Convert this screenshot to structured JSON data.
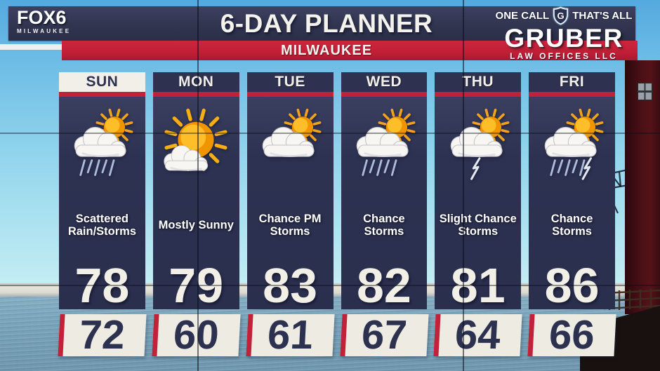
{
  "station": {
    "logo": "FOX6",
    "logo_sub": "MILWAUKEE"
  },
  "header": {
    "title": "6-DAY PLANNER",
    "location": "MILWAUKEE"
  },
  "sponsor": {
    "tag_left": "ONE CALL",
    "shield_letter": "G",
    "tag_right": "THAT'S ALL",
    "name": "GRUBER",
    "subtitle": "LAW OFFICES LLC"
  },
  "colors": {
    "navy": "#2e3250",
    "red": "#c3203a",
    "highlight_bg": "#f2efe8",
    "temp_text": "#f2efe7"
  },
  "forecast": {
    "days": [
      {
        "label": "SUN",
        "today": true,
        "icon": "sun-cloud-rain-icon",
        "condition": "Scattered\nRain/Storms",
        "high": "78",
        "low": "72"
      },
      {
        "label": "MON",
        "today": false,
        "icon": "big-sun-cloud-icon",
        "condition": "Mostly Sunny",
        "high": "79",
        "low": "60"
      },
      {
        "label": "TUE",
        "today": false,
        "icon": "cloud-sun-icon",
        "condition": "Chance PM\nStorms",
        "high": "83",
        "low": "61"
      },
      {
        "label": "WED",
        "today": false,
        "icon": "cloud-sun-rain-icon",
        "condition": "Chance\nStorms",
        "high": "82",
        "low": "67"
      },
      {
        "label": "THU",
        "today": false,
        "icon": "cloud-sun-bolt-icon",
        "condition": "Slight Chance\nStorms",
        "high": "81",
        "low": "64"
      },
      {
        "label": "FRI",
        "today": false,
        "icon": "cloud-sun-rain-bolt-icon",
        "condition": "Chance\nStorms",
        "high": "86",
        "low": "66"
      }
    ]
  }
}
